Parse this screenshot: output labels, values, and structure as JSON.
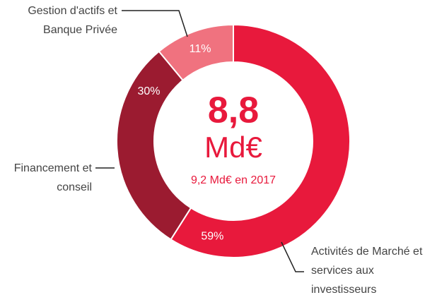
{
  "chart_data": {
    "type": "donut",
    "categories": [
      "Activités de Marché et services aux investisseurs",
      "Financement et conseil",
      "Gestion d'actifs et Banque Privée"
    ],
    "values": [
      59,
      30,
      11
    ],
    "value_labels": [
      "59%",
      "30%",
      "11%"
    ],
    "colors": [
      "#e8193c",
      "#9b1b30",
      "#f0727f"
    ],
    "center_value": "8,8",
    "center_unit": "Md€",
    "center_note": "9,2 Md€ en 2017"
  }
}
